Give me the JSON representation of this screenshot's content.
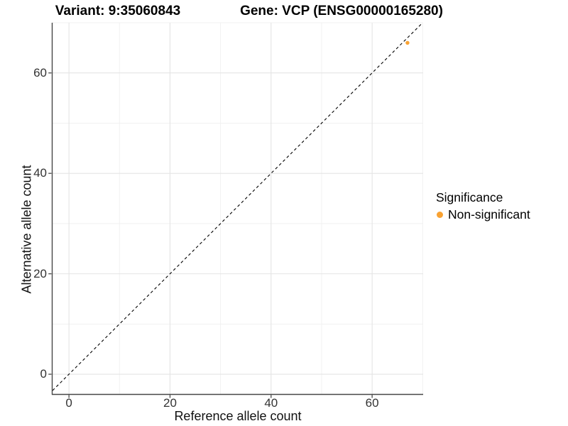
{
  "chart_data": {
    "type": "scatter",
    "title_left": "Variant: 9:35060843",
    "title_right": "Gene: VCP (ENSG00000165280)",
    "xlabel": "Reference allele count",
    "ylabel": "Alternative allele count",
    "xlim": [
      -3.25,
      70.1
    ],
    "ylim": [
      -3.95,
      70.0
    ],
    "x_ticks": [
      0,
      20,
      40,
      60
    ],
    "y_ticks": [
      0,
      20,
      40,
      60
    ],
    "x_minor_ticks": [
      10,
      30,
      50,
      70
    ],
    "y_minor_ticks": [
      10,
      30,
      50,
      70
    ],
    "grid": true,
    "reference_line": {
      "style": "dashed",
      "slope": 1,
      "intercept": 0,
      "color": "#000000"
    },
    "series": [
      {
        "name": "Non-significant",
        "color": "#F9A232",
        "points": [
          {
            "x": 67,
            "y": 66
          }
        ]
      }
    ],
    "legend": {
      "title": "Significance",
      "position": "right",
      "items": [
        {
          "label": "Non-significant",
          "color": "#F9A232",
          "marker": "dot-icon"
        }
      ]
    }
  }
}
